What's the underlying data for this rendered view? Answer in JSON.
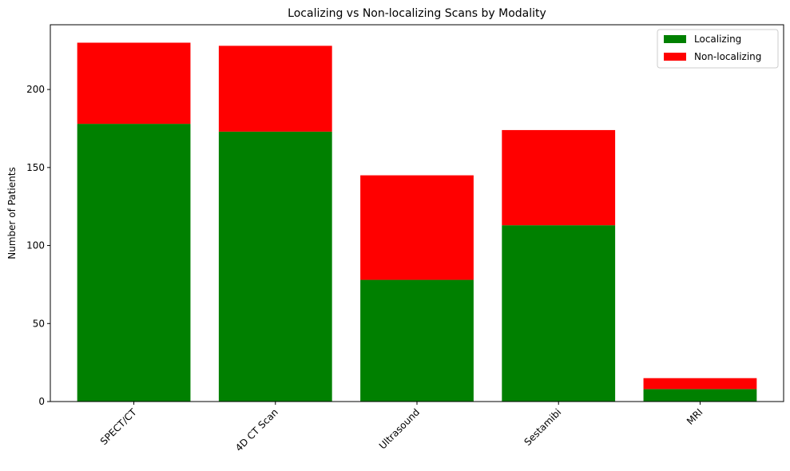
{
  "chart_data": {
    "type": "bar",
    "stacked": true,
    "title": "Localizing vs Non-localizing Scans by Modality",
    "xlabel": "",
    "ylabel": "Number of Patients",
    "categories": [
      "SPECT/CT",
      "4D CT Scan",
      "Ultrasound",
      "Sestamibi",
      "MRI"
    ],
    "series": [
      {
        "name": "Localizing",
        "color": "#008000",
        "values": [
          178,
          173,
          78,
          113,
          8
        ]
      },
      {
        "name": "Non-localizing",
        "color": "#ff0000",
        "values": [
          52,
          55,
          67,
          61,
          7
        ]
      }
    ],
    "ylim": [
      0,
      241.5
    ],
    "yticks": [
      0,
      50,
      100,
      150,
      200
    ],
    "ytick_labels": [
      "0",
      "50",
      "100",
      "150",
      "200"
    ],
    "grid": false,
    "legend_position": "top-right"
  }
}
